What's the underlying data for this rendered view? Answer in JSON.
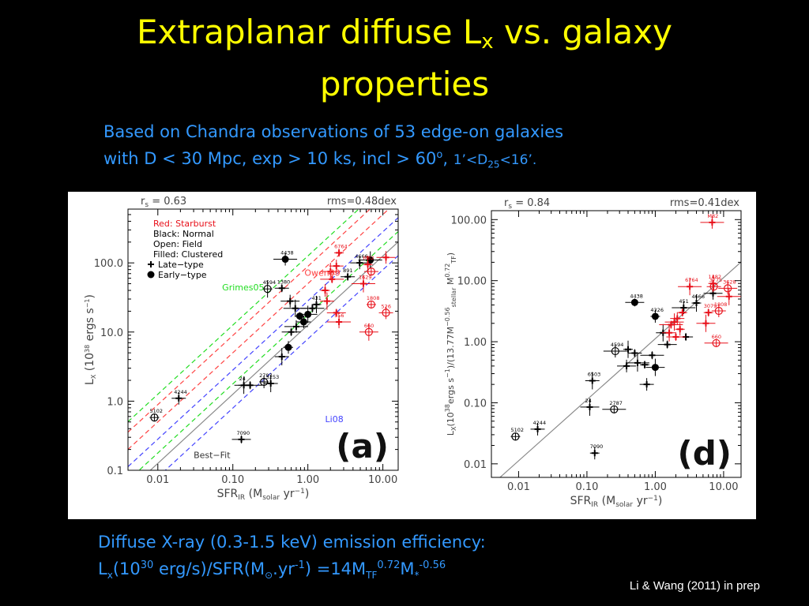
{
  "slide": {
    "title_main": "Extraplanar diffuse L",
    "title_sub": "x",
    "title_rest": " vs. galaxy",
    "title_line2": "properties",
    "intro_line1": "Based on Chandra observations of 53 edge-on galaxies",
    "intro_line2_a": "with D < 30 Mpc, exp > 10 ks,  incl > 60",
    "intro_sup_o": "o",
    "intro_comma": ", ",
    "intro_d25_a": "1’<D",
    "intro_d25_sub": "25",
    "intro_d25_b": "<16’.",
    "footer_line1": "Diffuse X-ray (0.3-1.5 keV) emission efficiency:",
    "footer_L": "L",
    "footer_x": "x",
    "footer_10": "(10",
    "footer_30": "30",
    "footer_erg": " erg/s)/SFR(M",
    "footer_sun": "⊙",
    "footer_yr": ".yr",
    "footer_m1": "-1",
    "footer_eq": ")  =14M",
    "footer_TF": "TF",
    "footer_072": "0.72",
    "footer_M": "M",
    "footer_star": "*",
    "footer_056": "-0.56",
    "citation": "Li & Wang (2011) in prep"
  },
  "colors": {
    "title": "#ffff00",
    "text_blue": "#3399ff",
    "starburst_red": "#e8101a",
    "normal_black": "#000000",
    "owen": "#ff4444",
    "grimes": "#22dd22",
    "li08": "#4444ff",
    "fit": "#8a8a8a"
  },
  "chart_data": [
    {
      "id": "a",
      "type": "scatter",
      "panel_label": "(a)",
      "rs_label": "r",
      "rs_sub": "s",
      "rs_value": "=  0.63",
      "rms": "rms=0.48dex",
      "xlabel": "SFR",
      "xlabel_sub": "IR",
      "xlabel_rest": " (M",
      "xlabel_sub2": "solar",
      "xlabel_tail": " yr",
      "xlabel_sup": "−1",
      "xlabel_close": ")",
      "ylabel": "L",
      "ylabel_sub": "X",
      "ylabel_rest": " (10",
      "ylabel_sup": "38",
      "ylabel_tail": " ergs s",
      "ylabel_sup2": "−1",
      "ylabel_close": ")",
      "xscale": "log",
      "yscale": "log",
      "xlim": [
        0.004,
        16
      ],
      "ylim": [
        0.1,
        600
      ],
      "xticks": [
        0.01,
        0.1,
        1,
        10
      ],
      "xtick_labels": [
        "0.01",
        "0.10",
        "1.00",
        "10.00"
      ],
      "yticks": [
        0.1,
        1,
        10,
        100
      ],
      "ytick_labels": [
        "0.1",
        "1.0",
        "10.0",
        "100.0"
      ],
      "legend": [
        "Red: Starburst",
        "Black: Normal",
        "Open: Field",
        "Filled: Clustered",
        "Late−type",
        "Early−type"
      ],
      "legend_colors": [
        "#e8101a",
        "#000000",
        "#000000",
        "#000000",
        "#000000",
        "#000000"
      ],
      "lines": [
        {
          "name": "Owen09",
          "slope": 1,
          "intercept": 1.7,
          "color": "#ff4444",
          "dash": true,
          "label_x": 0.9,
          "label_y": 65
        },
        {
          "name": "Grimes05",
          "slope": 1,
          "intercept": 2.1,
          "color": "#22dd22",
          "dash": true,
          "label_x": 0.072,
          "label_y": 40
        },
        {
          "name": "Li08",
          "slope": 1,
          "intercept": 0.9,
          "color": "#4444ff",
          "dash": true,
          "label_x": 1.7,
          "label_y": 0.5
        },
        {
          "name": "Best−Fit",
          "slope": 1,
          "intercept": 1.1,
          "color": "#8a8a8a",
          "dash": false,
          "label_x": 0.03,
          "label_y": 0.15
        }
      ],
      "extra_dashed": [
        {
          "slope": 1,
          "intercept": 1.95,
          "color": "#ff4444"
        },
        {
          "slope": 1,
          "intercept": 1.45,
          "color": "#4444ff"
        },
        {
          "slope": 1,
          "intercept": 1.25,
          "color": "#22dd22"
        }
      ],
      "points": [
        {
          "x": 0.009,
          "y": 0.58,
          "label": "5102",
          "color": "#000000",
          "marker": "open"
        },
        {
          "x": 0.019,
          "y": 1.1,
          "label": "4244",
          "color": "#000000",
          "marker": "plus"
        },
        {
          "x": 0.14,
          "y": 1.7,
          "label": "24",
          "color": "#000000",
          "marker": "plus"
        },
        {
          "x": 0.17,
          "y": 1.7,
          "label": "",
          "color": "#000000",
          "marker": "plus"
        },
        {
          "x": 0.26,
          "y": 1.9,
          "label": "2787",
          "color": "#000000",
          "marker": "open"
        },
        {
          "x": 0.32,
          "y": 1.8,
          "label": "3253",
          "color": "#000000",
          "marker": "plus"
        },
        {
          "x": 0.13,
          "y": 0.28,
          "label": "7090",
          "color": "#000000",
          "marker": "plus"
        },
        {
          "x": 0.5,
          "y": 113,
          "label": "4438",
          "color": "#000000",
          "marker": "filled"
        },
        {
          "x": 0.29,
          "y": 42,
          "label": "4594",
          "color": "#000000",
          "marker": "open"
        },
        {
          "x": 0.45,
          "y": 43,
          "label": "1380",
          "color": "#000000",
          "marker": "plus"
        },
        {
          "x": 0.58,
          "y": 28,
          "label": "",
          "color": "#000000",
          "marker": "plus"
        },
        {
          "x": 0.68,
          "y": 22,
          "label": "",
          "color": "#000000",
          "marker": "plus"
        },
        {
          "x": 0.78,
          "y": 17,
          "label": "",
          "color": "#000000",
          "marker": "filled"
        },
        {
          "x": 0.88,
          "y": 14,
          "label": "",
          "color": "#000000",
          "marker": "filled"
        },
        {
          "x": 1.0,
          "y": 18,
          "label": "",
          "color": "#000000",
          "marker": "filled"
        },
        {
          "x": 1.15,
          "y": 22,
          "label": "",
          "color": "#000000",
          "marker": "plus"
        },
        {
          "x": 0.55,
          "y": 6.0,
          "label": "",
          "color": "#000000",
          "marker": "filled"
        },
        {
          "x": 0.45,
          "y": 4.4,
          "label": "",
          "color": "#000000",
          "marker": "plus"
        },
        {
          "x": 0.6,
          "y": 10,
          "label": "",
          "color": "#000000",
          "marker": "plus"
        },
        {
          "x": 0.7,
          "y": 12,
          "label": "",
          "color": "#000000",
          "marker": "plus"
        },
        {
          "x": 1.3,
          "y": 25,
          "label": "431",
          "color": "#000000",
          "marker": "plus"
        },
        {
          "x": 3.4,
          "y": 63,
          "label": "891",
          "color": "#000000",
          "marker": "plus"
        },
        {
          "x": 4.9,
          "y": 100,
          "label": "4666",
          "color": "#000000",
          "marker": "plus"
        },
        {
          "x": 6.8,
          "y": 110,
          "label": "",
          "color": "#000000",
          "marker": "filled"
        },
        {
          "x": 2.6,
          "y": 140,
          "label": "6764",
          "color": "#e8101a",
          "marker": "plus"
        },
        {
          "x": 2.4,
          "y": 90,
          "label": "",
          "color": "#e8101a",
          "marker": "plus"
        },
        {
          "x": 2.0,
          "y": 75,
          "label": "",
          "color": "#e8101a",
          "marker": "plus"
        },
        {
          "x": 2.1,
          "y": 58,
          "label": "483",
          "color": "#e8101a",
          "marker": "plus"
        },
        {
          "x": 1.7,
          "y": 40,
          "label": "",
          "color": "#e8101a",
          "marker": "plus"
        },
        {
          "x": 1.8,
          "y": 28,
          "label": "",
          "color": "#e8101a",
          "marker": "plus"
        },
        {
          "x": 2.4,
          "y": 19,
          "label": "",
          "color": "#e8101a",
          "marker": "plus"
        },
        {
          "x": 2.6,
          "y": 14,
          "label": "556",
          "color": "#e8101a",
          "marker": "plus"
        },
        {
          "x": 6.3,
          "y": 95,
          "label": "M82",
          "color": "#e8101a",
          "marker": "plus"
        },
        {
          "x": 7.0,
          "y": 75,
          "label": "",
          "color": "#e8101a",
          "marker": "open"
        },
        {
          "x": 11,
          "y": 120,
          "label": "",
          "color": "#e8101a",
          "marker": "plus"
        },
        {
          "x": 5.5,
          "y": 50,
          "label": "1629",
          "color": "#e8101a",
          "marker": "plus"
        },
        {
          "x": 7.0,
          "y": 25,
          "label": "1808",
          "color": "#e8101a",
          "marker": "open"
        },
        {
          "x": 11,
          "y": 19,
          "label": "526",
          "color": "#e8101a",
          "marker": "open"
        },
        {
          "x": 6.5,
          "y": 10,
          "label": "660",
          "color": "#e8101a",
          "marker": "open"
        }
      ]
    },
    {
      "id": "d",
      "type": "scatter",
      "panel_label": "(d)",
      "rs_label": "r",
      "rs_sub": "s",
      "rs_value": "=  0.84",
      "rms": "rms=0.41dex",
      "xlabel": "SFR",
      "xlabel_sub": "IR",
      "xlabel_rest": " (M",
      "xlabel_sub2": "solar",
      "xlabel_tail": " yr",
      "xlabel_sup": "−1",
      "xlabel_close": ")",
      "ylabel": "L",
      "ylabel_sub": "X",
      "ylabel_rest": "(10",
      "ylabel_sup": "38",
      "ylabel_tail": "ergs s",
      "ylabel_sup2": "−1",
      "ylabel_mid": ")/(13.77M",
      "ylabel_msup": "−0.56",
      "ylabel_msub": "stellar",
      "ylabel_m2": " M",
      "ylabel_m2sup": "0.72",
      "ylabel_m2sub": "TF",
      "ylabel_close": ")",
      "xscale": "log",
      "yscale": "log",
      "xlim": [
        0.004,
        18
      ],
      "ylim": [
        0.006,
        140
      ],
      "xticks": [
        0.01,
        0.1,
        1,
        10
      ],
      "xtick_labels": [
        "0.01",
        "0.10",
        "1.00",
        "10.00"
      ],
      "yticks": [
        0.01,
        0.1,
        1,
        10,
        100
      ],
      "ytick_labels": [
        "0.01",
        "0.10",
        "1.00",
        "10.00",
        "100.00"
      ],
      "lines": [
        {
          "name": "",
          "slope": 1,
          "intercept": 0.05,
          "color": "#8a8a8a",
          "dash": false
        }
      ],
      "extra_dashed": [],
      "points": [
        {
          "x": 0.009,
          "y": 0.028,
          "label": "5102",
          "color": "#000000",
          "marker": "open"
        },
        {
          "x": 0.019,
          "y": 0.037,
          "label": "4244",
          "color": "#000000",
          "marker": "plus"
        },
        {
          "x": 0.11,
          "y": 0.085,
          "label": "24",
          "color": "#000000",
          "marker": "plus"
        },
        {
          "x": 0.25,
          "y": 0.078,
          "label": "2787",
          "color": "#000000",
          "marker": "open"
        },
        {
          "x": 0.13,
          "y": 0.015,
          "label": "7090",
          "color": "#000000",
          "marker": "plus"
        },
        {
          "x": 0.12,
          "y": 0.23,
          "label": "6503",
          "color": "#000000",
          "marker": "plus"
        },
        {
          "x": 0.5,
          "y": 4.4,
          "label": "4438",
          "color": "#000000",
          "marker": "filled"
        },
        {
          "x": 0.26,
          "y": 0.7,
          "label": "4594",
          "color": "#000000",
          "marker": "open"
        },
        {
          "x": 0.4,
          "y": 0.75,
          "label": "",
          "color": "#000000",
          "marker": "plus"
        },
        {
          "x": 0.5,
          "y": 0.65,
          "label": "",
          "color": "#000000",
          "marker": "plus"
        },
        {
          "x": 0.38,
          "y": 0.4,
          "label": "",
          "color": "#000000",
          "marker": "plus"
        },
        {
          "x": 0.55,
          "y": 0.45,
          "label": "",
          "color": "#000000",
          "marker": "plus"
        },
        {
          "x": 0.7,
          "y": 0.42,
          "label": "",
          "color": "#000000",
          "marker": "plus"
        },
        {
          "x": 0.75,
          "y": 0.2,
          "label": "",
          "color": "#000000",
          "marker": "plus"
        },
        {
          "x": 1.0,
          "y": 0.38,
          "label": "",
          "color": "#000000",
          "marker": "filled"
        },
        {
          "x": 0.9,
          "y": 0.6,
          "label": "",
          "color": "#000000",
          "marker": "plus"
        },
        {
          "x": 1.0,
          "y": 2.6,
          "label": "4326",
          "color": "#000000",
          "marker": "filled"
        },
        {
          "x": 1.3,
          "y": 1.4,
          "label": "",
          "color": "#000000",
          "marker": "plus"
        },
        {
          "x": 1.5,
          "y": 0.9,
          "label": "",
          "color": "#000000",
          "marker": "plus"
        },
        {
          "x": 2.6,
          "y": 3.6,
          "label": "451",
          "color": "#000000",
          "marker": "plus"
        },
        {
          "x": 4.0,
          "y": 4.3,
          "label": "4666",
          "color": "#000000",
          "marker": "plus"
        },
        {
          "x": 2.8,
          "y": 1.2,
          "label": "",
          "color": "#000000",
          "marker": "plus"
        },
        {
          "x": 7.0,
          "y": 6.2,
          "label": "",
          "color": "#000000",
          "marker": "plus"
        },
        {
          "x": 3.2,
          "y": 8.0,
          "label": "6764",
          "color": "#e8101a",
          "marker": "plus"
        },
        {
          "x": 2.5,
          "y": 3.0,
          "label": "",
          "color": "#e8101a",
          "marker": "plus"
        },
        {
          "x": 2.1,
          "y": 2.4,
          "label": "",
          "color": "#e8101a",
          "marker": "plus"
        },
        {
          "x": 1.9,
          "y": 2.1,
          "label": "",
          "color": "#e8101a",
          "marker": "plus"
        },
        {
          "x": 1.7,
          "y": 1.9,
          "label": "",
          "color": "#e8101a",
          "marker": "plus"
        },
        {
          "x": 2.3,
          "y": 1.6,
          "label": "",
          "color": "#e8101a",
          "marker": "plus"
        },
        {
          "x": 1.6,
          "y": 1.4,
          "label": "",
          "color": "#e8101a",
          "marker": "plus"
        },
        {
          "x": 2.0,
          "y": 1.2,
          "label": "",
          "color": "#e8101a",
          "marker": "plus"
        },
        {
          "x": 6.8,
          "y": 90,
          "label": "M82",
          "color": "#e8101a",
          "marker": "plus"
        },
        {
          "x": 7.0,
          "y": 9.0,
          "label": "1482",
          "color": "#e8101a",
          "marker": "plus"
        },
        {
          "x": 7.2,
          "y": 8.0,
          "label": "3775",
          "color": "#e8101a",
          "marker": "open"
        },
        {
          "x": 11.5,
          "y": 7.5,
          "label": "3628",
          "color": "#e8101a",
          "marker": "open"
        },
        {
          "x": 12,
          "y": 5.5,
          "label": "",
          "color": "#e8101a",
          "marker": "plus"
        },
        {
          "x": 6.0,
          "y": 3.0,
          "label": "3079",
          "color": "#e8101a",
          "marker": "plus"
        },
        {
          "x": 8.5,
          "y": 3.2,
          "label": "1808",
          "color": "#e8101a",
          "marker": "open"
        },
        {
          "x": 5.5,
          "y": 2.0,
          "label": "",
          "color": "#e8101a",
          "marker": "plus"
        },
        {
          "x": 7.8,
          "y": 0.95,
          "label": "660",
          "color": "#e8101a",
          "marker": "open"
        }
      ]
    }
  ]
}
